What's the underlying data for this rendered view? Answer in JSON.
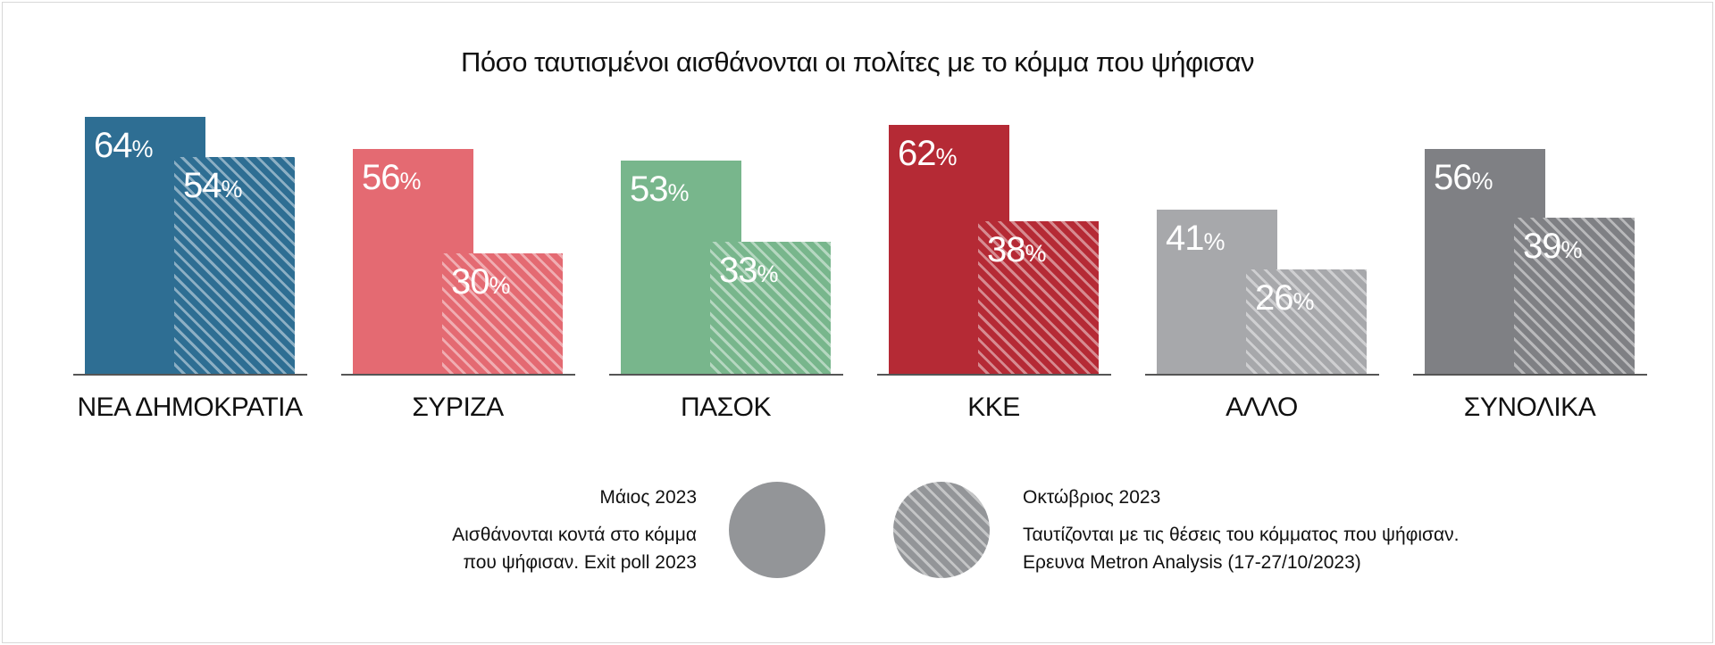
{
  "chart_data": {
    "type": "bar",
    "title": "Πόσο ταυτισμένοι αισθάνονται οι πολίτες με το κόμμα που ψήφισαν",
    "categories": [
      "ΝΕΑ ΔΗΜΟΚΡΑΤΙΑ",
      "ΣΥΡΙΖΑ",
      "ΠΑΣΟΚ",
      "ΚΚΕ",
      "ΑΛΛΟ",
      "ΣΥΝΟΛΙΚΑ"
    ],
    "colors": [
      "#2e6e93",
      "#e46a72",
      "#78b68c",
      "#b52a35",
      "#a7a8ab",
      "#7f8084"
    ],
    "series": [
      {
        "name": "Μάιος 2023",
        "pattern": "solid",
        "values": [
          64,
          56,
          53,
          62,
          41,
          56
        ]
      },
      {
        "name": "Οκτώβριος 2023",
        "pattern": "hatched",
        "values": [
          54,
          30,
          33,
          38,
          26,
          39
        ]
      }
    ],
    "unit": "%",
    "ylim": [
      0,
      64
    ],
    "grid": false,
    "legend": {
      "placement": "bottom",
      "color": "#939598",
      "items": [
        {
          "title": "Μάιος 2023",
          "line1": "Αισθάνονται κοντά στο κόμμα",
          "line2": "που ψήφισαν. Exit poll 2023"
        },
        {
          "title": "Οκτώβριος 2023",
          "line1": "Ταυτίζονται με τις θέσεις του κόμματος που ψήφισαν.",
          "line2": "Ερευνα Metron Analysis (17-27/10/2023)"
        }
      ]
    }
  }
}
